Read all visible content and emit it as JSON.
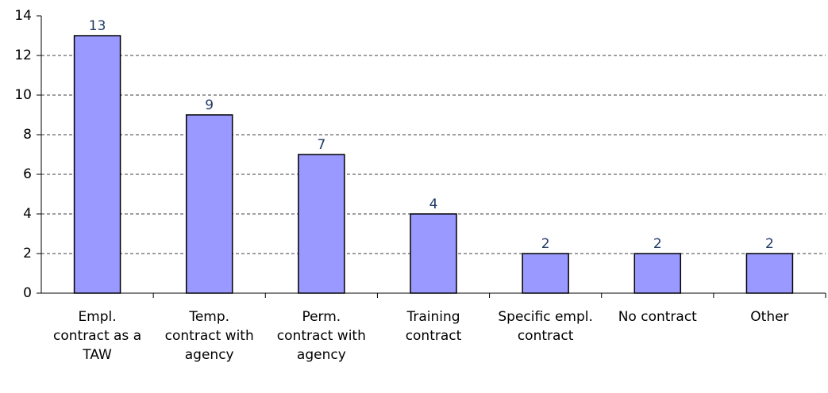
{
  "chart_data": {
    "type": "bar",
    "categories": [
      "Empl. contract as a TAW",
      "Temp. contract with agency",
      "Perm. contract with agency",
      "Training contract",
      "Specific empl. contract",
      "No contract",
      "Other"
    ],
    "values": [
      13,
      9,
      7,
      4,
      2,
      2,
      2
    ],
    "color": "#9999ff",
    "ylim": [
      0,
      14
    ],
    "yticks": [
      0,
      2,
      4,
      6,
      8,
      10,
      12,
      14
    ],
    "grid": true
  }
}
